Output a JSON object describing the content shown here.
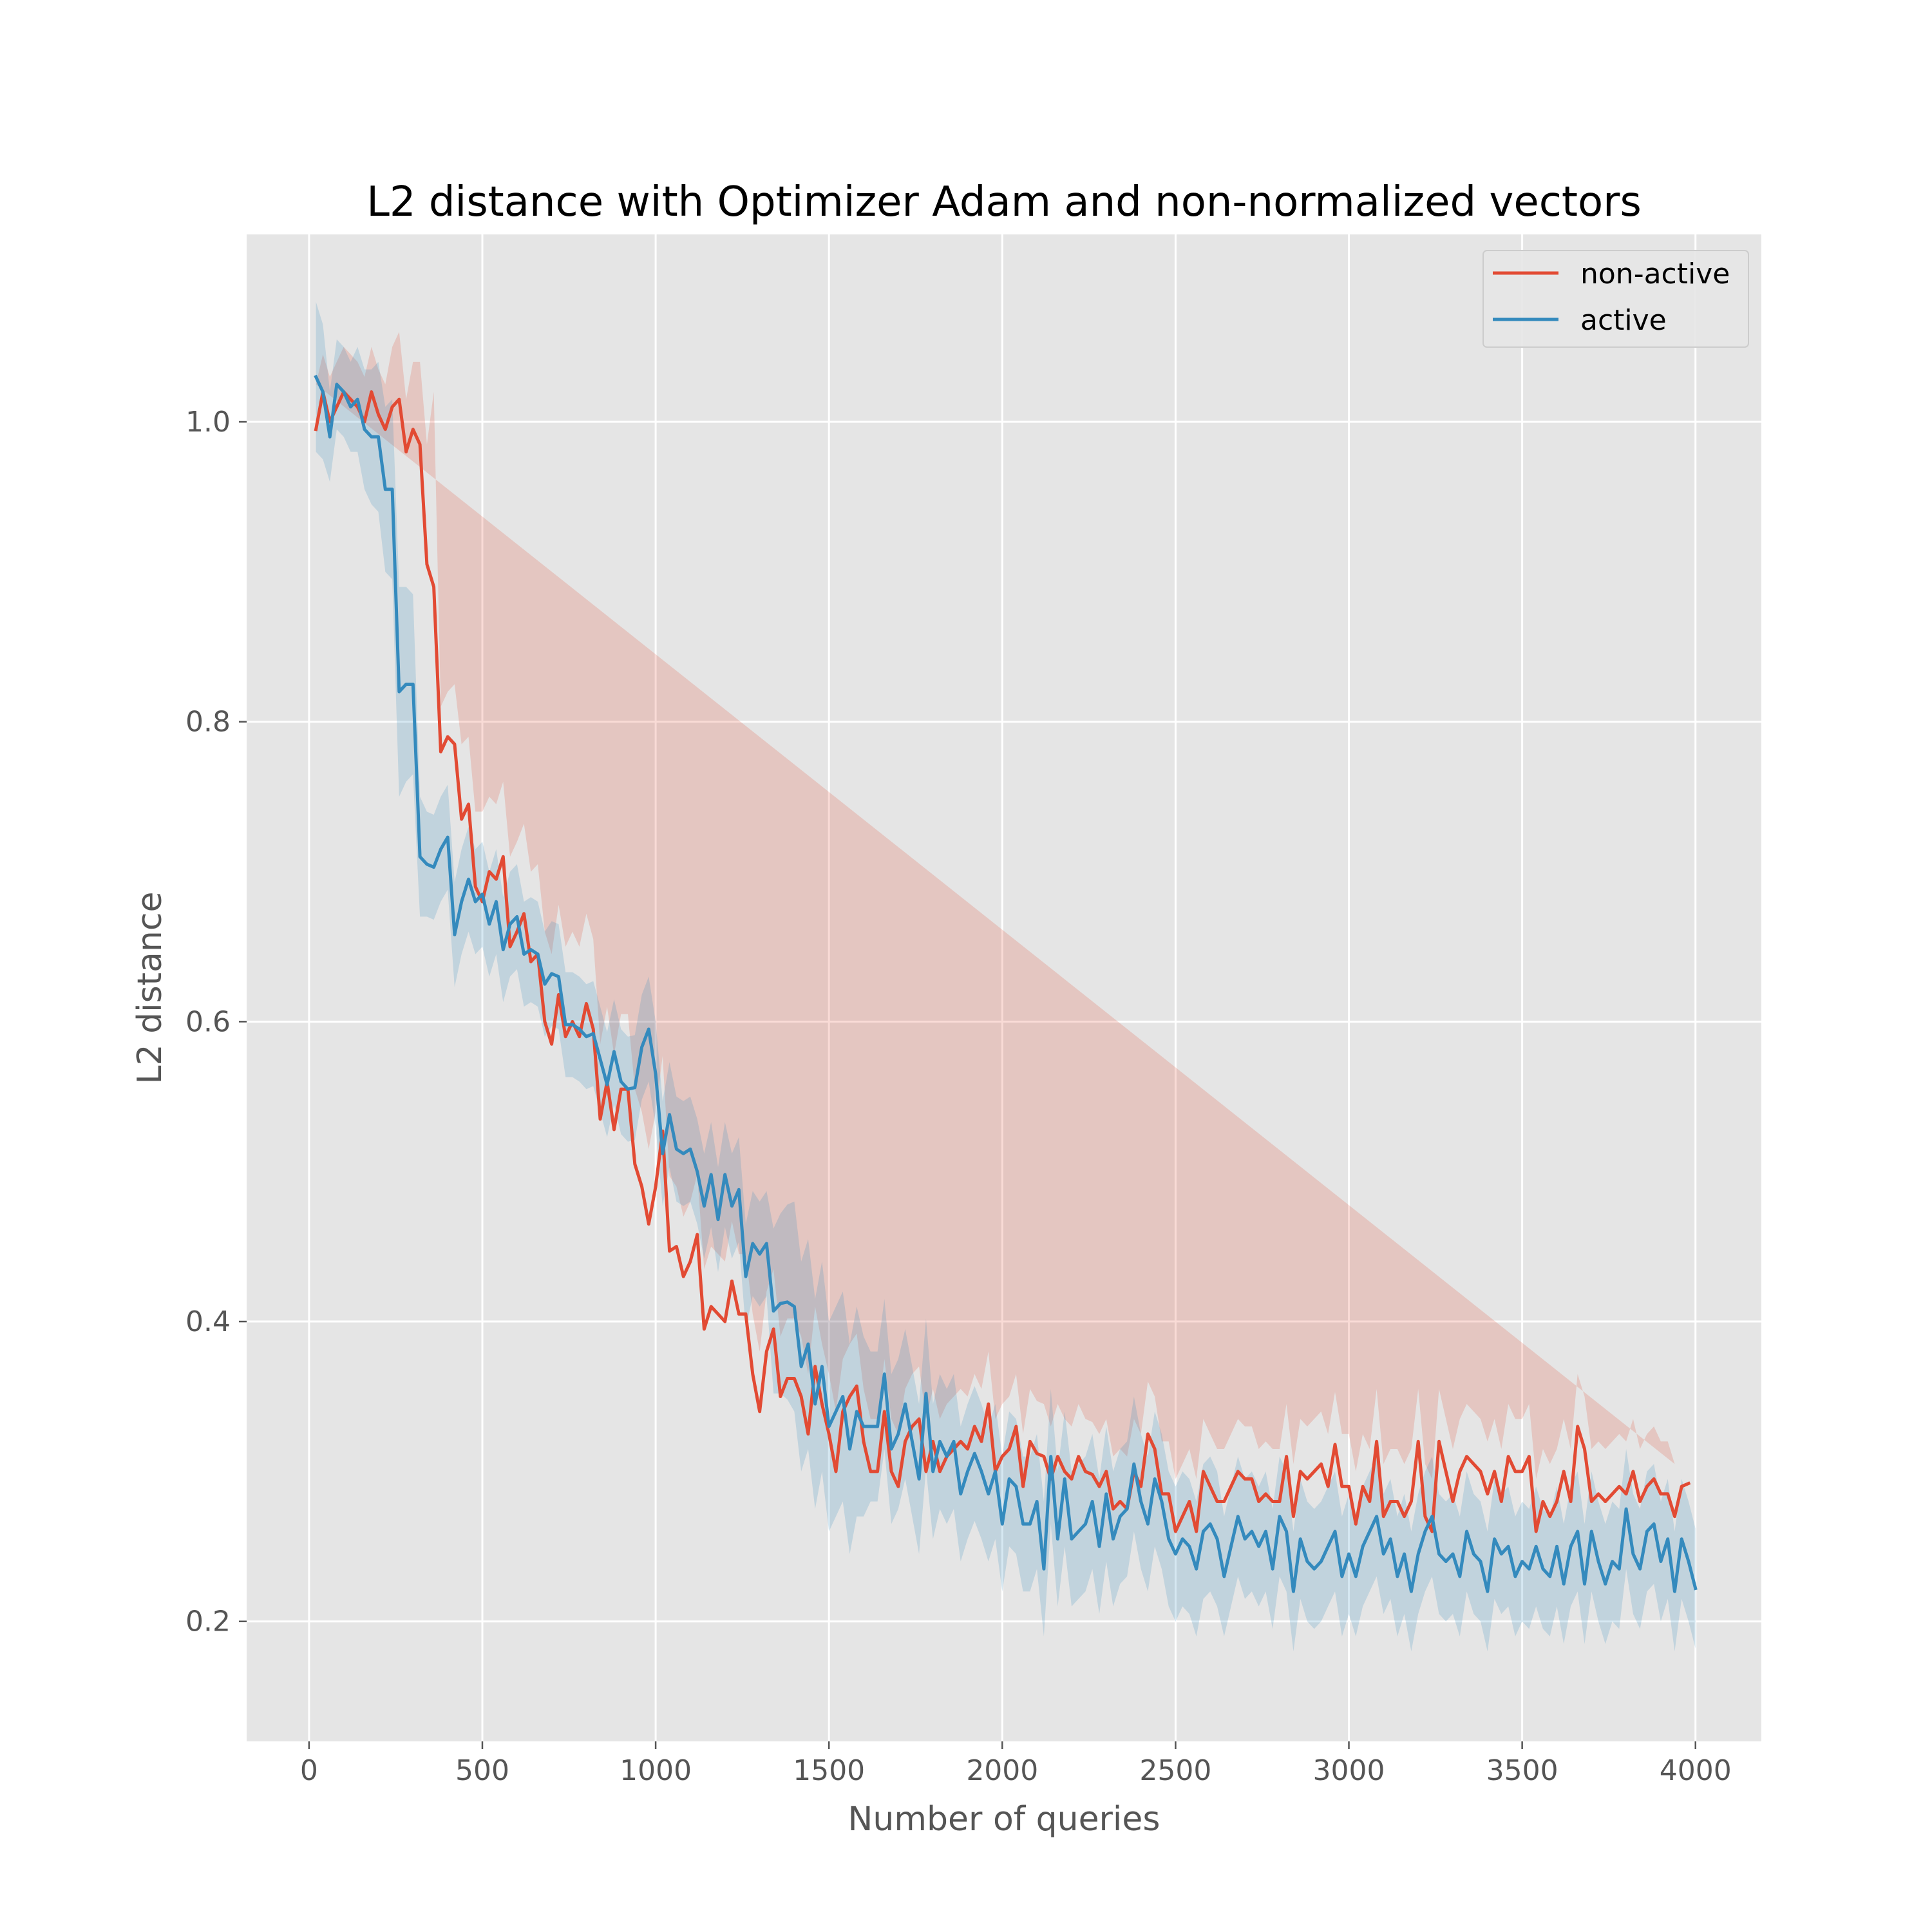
{
  "chart_data": {
    "type": "line",
    "title": "L2 distance with Optimizer Adam and non-normalized vectors",
    "xlabel": "Number of queries",
    "ylabel": "L2 distance",
    "xlim": [
      -180,
      4190
    ],
    "ylim": [
      0.12,
      1.125
    ],
    "xticks": [
      0,
      500,
      1000,
      1500,
      2000,
      2500,
      3000,
      3500,
      4000
    ],
    "xtick_labels": [
      "0",
      "500",
      "1000",
      "1500",
      "2000",
      "2500",
      "3000",
      "3500",
      "4000"
    ],
    "yticks": [
      0.2,
      0.4,
      0.6,
      0.8,
      1.0
    ],
    "ytick_labels": [
      "0.2",
      "0.4",
      "0.6",
      "0.8",
      "1.0"
    ],
    "grid": true,
    "legend_position": "upper right",
    "x_start": 20,
    "x_step": 20,
    "series": [
      {
        "name": "non-active",
        "color": "#E24A33",
        "values": [
          0.995,
          1.02,
          1.0,
          1.01,
          1.02,
          1.015,
          1.01,
          1.0,
          1.02,
          1.005,
          0.995,
          1.01,
          1.015,
          0.98,
          0.995,
          0.985,
          0.905,
          0.89,
          0.78,
          0.79,
          0.785,
          0.735,
          0.745,
          0.69,
          0.68,
          0.7,
          0.695,
          0.71,
          0.65,
          0.66,
          0.672,
          0.64,
          0.645,
          0.6,
          0.585,
          0.618,
          0.59,
          0.6,
          0.59,
          0.612,
          0.595,
          0.535,
          0.56,
          0.528,
          0.555,
          0.555,
          0.505,
          0.49,
          0.465,
          0.49,
          0.527,
          0.447,
          0.45,
          0.43,
          0.44,
          0.458,
          0.395,
          0.41,
          0.405,
          0.4,
          0.427,
          0.405,
          0.405,
          0.365,
          0.34,
          0.38,
          0.395,
          0.35,
          0.362,
          0.362,
          0.35,
          0.325,
          0.37,
          0.345,
          0.325,
          0.3,
          0.34,
          0.35,
          0.357,
          0.32,
          0.3,
          0.3,
          0.34,
          0.3,
          0.29,
          0.32,
          0.33,
          0.335,
          0.3,
          0.32,
          0.3,
          0.31,
          0.315,
          0.32,
          0.315,
          0.33,
          0.32,
          0.345,
          0.3,
          0.31,
          0.315,
          0.33,
          0.29,
          0.32,
          0.312,
          0.31,
          0.295,
          0.31,
          0.3,
          0.295,
          0.31,
          0.3,
          0.298,
          0.29,
          0.3,
          0.275,
          0.28,
          0.275,
          0.3,
          0.29,
          0.325,
          0.315,
          0.285,
          0.285,
          0.26,
          0.27,
          0.28,
          0.26,
          0.3,
          0.29,
          0.28,
          0.28,
          0.29,
          0.3,
          0.295,
          0.295,
          0.28,
          0.285,
          0.28,
          0.28,
          0.31,
          0.27,
          0.3,
          0.295,
          0.3,
          0.305,
          0.29,
          0.318,
          0.29,
          0.29,
          0.265,
          0.29,
          0.28,
          0.32,
          0.27,
          0.28,
          0.28,
          0.27,
          0.28,
          0.32,
          0.27,
          0.26,
          0.32,
          0.3,
          0.28,
          0.3,
          0.31,
          0.305,
          0.3,
          0.285,
          0.3,
          0.28,
          0.31,
          0.3,
          0.3,
          0.31,
          0.26,
          0.28,
          0.27,
          0.28,
          0.3,
          0.28,
          0.33,
          0.315,
          0.28,
          0.285,
          0.28,
          0.285,
          0.29,
          0.285,
          0.3,
          0.28,
          0.29,
          0.295,
          0.285,
          0.285,
          0.27,
          0.29,
          0.292
        ],
        "band": [
          0.03,
          0.025,
          0.03,
          0.03,
          0.03,
          0.03,
          0.03,
          0.03,
          0.03,
          0.03,
          0.03,
          0.04,
          0.045,
          0.035,
          0.045,
          0.055,
          0.08,
          0.13,
          0.03,
          0.03,
          0.04,
          0.05,
          0.045,
          0.05,
          0.06,
          0.05,
          0.05,
          0.05,
          0.06,
          0.06,
          0.06,
          0.06,
          0.06,
          0.06,
          0.06,
          0.06,
          0.06,
          0.06,
          0.06,
          0.06,
          0.06,
          0.05,
          0.05,
          0.05,
          0.05,
          0.05,
          0.05,
          0.05,
          0.05,
          0.05,
          0.05,
          0.05,
          0.04,
          0.04,
          0.04,
          0.04,
          0.04,
          0.04,
          0.04,
          0.04,
          0.04,
          0.04,
          0.04,
          0.04,
          0.04,
          0.04,
          0.04,
          0.04,
          0.04,
          0.04,
          0.04,
          0.04,
          0.04,
          0.04,
          0.04,
          0.04,
          0.035,
          0.035,
          0.035,
          0.035,
          0.035,
          0.035,
          0.035,
          0.035,
          0.035,
          0.035,
          0.035,
          0.035,
          0.035,
          0.035,
          0.035,
          0.035,
          0.035,
          0.035,
          0.035,
          0.035,
          0.035,
          0.035,
          0.035,
          0.035,
          0.035,
          0.035,
          0.035,
          0.035,
          0.035,
          0.035,
          0.035,
          0.035,
          0.035,
          0.035,
          0.035,
          0.035,
          0.035,
          0.035,
          0.035,
          0.035,
          0.035,
          0.035,
          0.035,
          0.035,
          0.035,
          0.035,
          0.035,
          0.035,
          0.035,
          0.035,
          0.035,
          0.035,
          0.035,
          0.035,
          0.035,
          0.035,
          0.035,
          0.035,
          0.035,
          0.035,
          0.035,
          0.035,
          0.035,
          0.035,
          0.035,
          0.035,
          0.035,
          0.035,
          0.035,
          0.035,
          0.035,
          0.035,
          0.035,
          0.035,
          0.035,
          0.035,
          0.035,
          0.035,
          0.035,
          0.035,
          0.035,
          0.035,
          0.035,
          0.035,
          0.035,
          0.035,
          0.035,
          0.035,
          0.035,
          0.035,
          0.035,
          0.035,
          0.035,
          0.035,
          0.035,
          0.035,
          0.035,
          0.035,
          0.035,
          0.035,
          0.035,
          0.035,
          0.035,
          0.035,
          0.035,
          0.035,
          0.035,
          0.035,
          0.035,
          0.035,
          0.035,
          0.035,
          0.035,
          0.035,
          0.035,
          0.035,
          0.035,
          0.035,
          0.035,
          0.035,
          0.035
        ]
      },
      {
        "name": "active",
        "color": "#348ABD",
        "values": [
          1.03,
          1.02,
          0.99,
          1.025,
          1.02,
          1.01,
          1.015,
          0.995,
          0.99,
          0.99,
          0.955,
          0.955,
          0.82,
          0.825,
          0.825,
          0.71,
          0.705,
          0.703,
          0.715,
          0.723,
          0.658,
          0.68,
          0.695,
          0.68,
          0.685,
          0.665,
          0.68,
          0.648,
          0.665,
          0.67,
          0.645,
          0.648,
          0.645,
          0.625,
          0.632,
          0.63,
          0.598,
          0.598,
          0.595,
          0.59,
          0.592,
          0.575,
          0.558,
          0.58,
          0.56,
          0.555,
          0.556,
          0.583,
          0.595,
          0.565,
          0.512,
          0.538,
          0.515,
          0.512,
          0.515,
          0.5,
          0.477,
          0.498,
          0.468,
          0.498,
          0.477,
          0.488,
          0.43,
          0.452,
          0.445,
          0.452,
          0.407,
          0.412,
          0.413,
          0.41,
          0.37,
          0.385,
          0.345,
          0.37,
          0.33,
          0.34,
          0.35,
          0.315,
          0.34,
          0.33,
          0.33,
          0.33,
          0.365,
          0.315,
          0.325,
          0.345,
          0.32,
          0.295,
          0.352,
          0.3,
          0.32,
          0.31,
          0.32,
          0.285,
          0.3,
          0.312,
          0.3,
          0.285,
          0.3,
          0.265,
          0.295,
          0.29,
          0.265,
          0.265,
          0.28,
          0.235,
          0.31,
          0.255,
          0.295,
          0.255,
          0.26,
          0.265,
          0.28,
          0.25,
          0.285,
          0.255,
          0.27,
          0.275,
          0.305,
          0.28,
          0.265,
          0.295,
          0.28,
          0.255,
          0.245,
          0.255,
          0.25,
          0.235,
          0.26,
          0.265,
          0.255,
          0.23,
          0.25,
          0.27,
          0.255,
          0.26,
          0.25,
          0.26,
          0.235,
          0.27,
          0.26,
          0.22,
          0.255,
          0.24,
          0.235,
          0.24,
          0.25,
          0.26,
          0.23,
          0.245,
          0.23,
          0.25,
          0.26,
          0.27,
          0.245,
          0.255,
          0.23,
          0.245,
          0.22,
          0.245,
          0.26,
          0.27,
          0.245,
          0.24,
          0.245,
          0.23,
          0.26,
          0.245,
          0.24,
          0.22,
          0.255,
          0.245,
          0.25,
          0.23,
          0.24,
          0.235,
          0.25,
          0.235,
          0.23,
          0.25,
          0.225,
          0.25,
          0.26,
          0.225,
          0.26,
          0.24,
          0.225,
          0.24,
          0.235,
          0.275,
          0.245,
          0.235,
          0.26,
          0.265,
          0.24,
          0.255,
          0.22,
          0.255,
          0.24,
          0.222
        ],
        "band": [
          0.05,
          0.045,
          0.03,
          0.03,
          0.03,
          0.03,
          0.035,
          0.04,
          0.045,
          0.05,
          0.055,
          0.06,
          0.07,
          0.065,
          0.06,
          0.04,
          0.035,
          0.035,
          0.035,
          0.035,
          0.035,
          0.035,
          0.035,
          0.035,
          0.035,
          0.035,
          0.035,
          0.035,
          0.035,
          0.035,
          0.035,
          0.035,
          0.035,
          0.035,
          0.035,
          0.035,
          0.035,
          0.035,
          0.035,
          0.035,
          0.035,
          0.035,
          0.035,
          0.035,
          0.035,
          0.035,
          0.035,
          0.035,
          0.035,
          0.035,
          0.035,
          0.035,
          0.035,
          0.035,
          0.035,
          0.035,
          0.035,
          0.035,
          0.035,
          0.035,
          0.035,
          0.035,
          0.035,
          0.035,
          0.035,
          0.035,
          0.055,
          0.06,
          0.065,
          0.07,
          0.07,
          0.07,
          0.07,
          0.07,
          0.07,
          0.07,
          0.07,
          0.07,
          0.07,
          0.06,
          0.05,
          0.05,
          0.05,
          0.05,
          0.05,
          0.05,
          0.05,
          0.05,
          0.05,
          0.045,
          0.045,
          0.045,
          0.045,
          0.045,
          0.045,
          0.045,
          0.045,
          0.045,
          0.045,
          0.045,
          0.045,
          0.045,
          0.045,
          0.045,
          0.045,
          0.045,
          0.045,
          0.045,
          0.045,
          0.045,
          0.045,
          0.045,
          0.045,
          0.045,
          0.045,
          0.045,
          0.045,
          0.045,
          0.045,
          0.045,
          0.045,
          0.045,
          0.045,
          0.045,
          0.045,
          0.045,
          0.045,
          0.045,
          0.045,
          0.045,
          0.045,
          0.04,
          0.04,
          0.04,
          0.04,
          0.04,
          0.04,
          0.04,
          0.04,
          0.04,
          0.04,
          0.04,
          0.04,
          0.04,
          0.04,
          0.04,
          0.04,
          0.04,
          0.04,
          0.04,
          0.04,
          0.04,
          0.04,
          0.04,
          0.04,
          0.04,
          0.04,
          0.04,
          0.04,
          0.04,
          0.04,
          0.04,
          0.04,
          0.04,
          0.04,
          0.04,
          0.04,
          0.04,
          0.04,
          0.04,
          0.04,
          0.04,
          0.04,
          0.04,
          0.04,
          0.04,
          0.04,
          0.04,
          0.04,
          0.04,
          0.04,
          0.04,
          0.04,
          0.04,
          0.04,
          0.04,
          0.04,
          0.04,
          0.04,
          0.04,
          0.04,
          0.04,
          0.04,
          0.04,
          0.04,
          0.04,
          0.04,
          0.04,
          0.04,
          0.04,
          0.04,
          0.04,
          0.04,
          0.04,
          0.04
        ]
      }
    ]
  }
}
